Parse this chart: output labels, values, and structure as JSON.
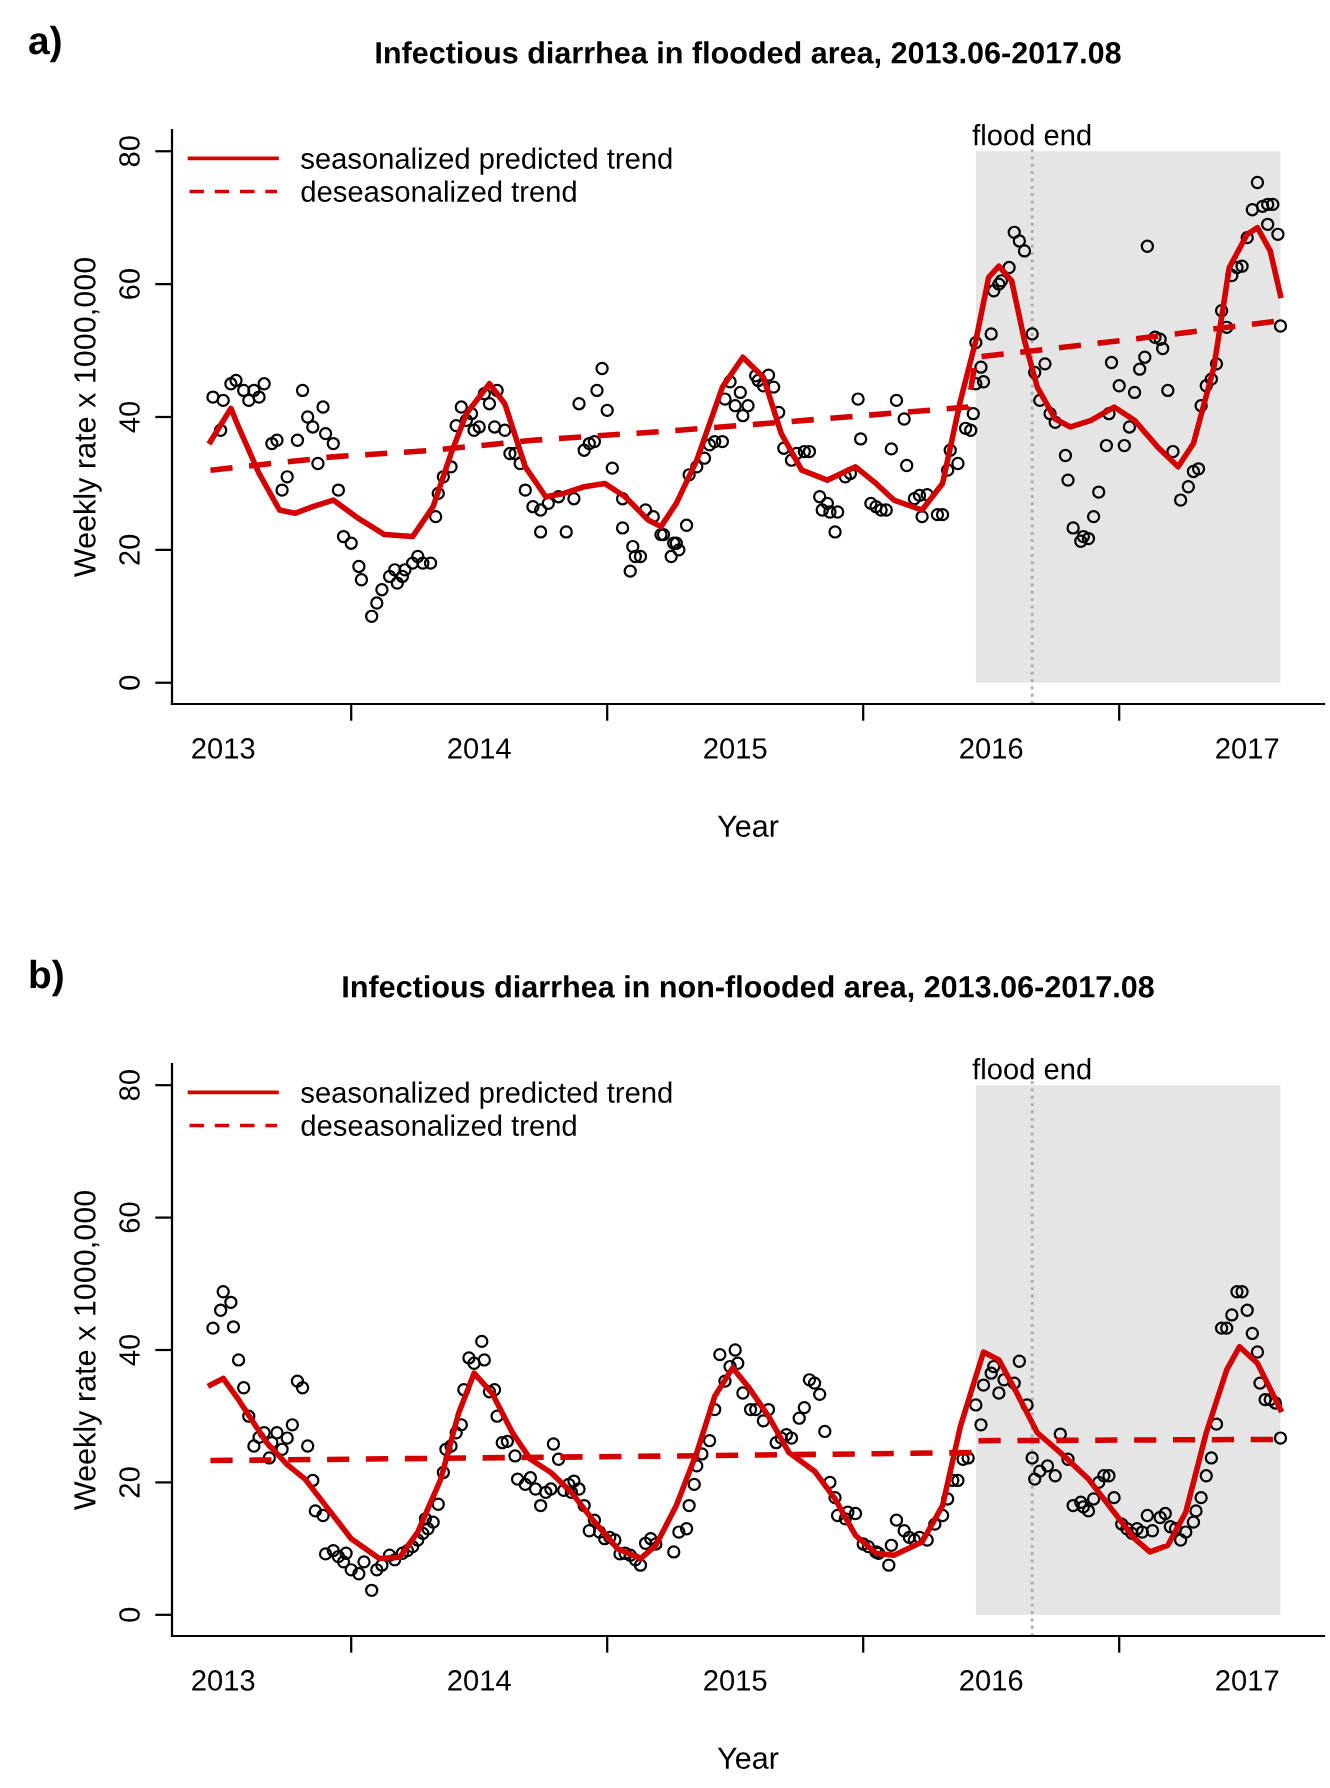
{
  "chart_data": [
    {
      "type": "scatter",
      "title": "Infectious diarrhea in flooded area, 2013.06-2017.08",
      "xlabel": "Year",
      "ylabel": "Weekly rate x 1000,000",
      "annotations": [
        "a)"
      ],
      "xlim": [
        2013.3,
        2017.8
      ],
      "ylim": [
        -3.2,
        83.2
      ],
      "yticks": [
        0,
        20,
        40,
        60,
        80
      ],
      "xticks": [
        {
          "value": 2013.5,
          "label": "2013"
        },
        {
          "value": 2014,
          "label": null
        },
        {
          "value": 2014.5,
          "label": "2014"
        },
        {
          "value": 2015,
          "label": null
        },
        {
          "value": 2015.5,
          "label": "2015"
        },
        {
          "value": 2016,
          "label": null
        },
        {
          "value": 2016.5,
          "label": "2016"
        },
        {
          "value": 2017,
          "label": null
        },
        {
          "value": 2017.5,
          "label": "2017"
        }
      ],
      "legend": "top left",
      "bands": [
        {
          "axis": "x",
          "from": 2016.44,
          "to": 2017.63,
          "color": "#e5e5e5"
        }
      ],
      "ref_lines": [
        {
          "axis": "x",
          "value": 2016.66,
          "label": "flood end",
          "color": "#aaaaaa",
          "line_style": "dotted"
        }
      ],
      "series": [
        {
          "marker": "circle",
          "color": "#000000",
          "x": [
            2013.46,
            2013.5,
            2013.49,
            2013.53,
            2013.55,
            2013.58,
            2013.6,
            2013.62,
            2013.64,
            2013.66,
            2013.69,
            2013.71,
            2013.73,
            2013.75,
            2013.79,
            2013.81,
            2013.83,
            2013.85,
            2013.87,
            2013.89,
            2013.9,
            2013.93,
            2013.95,
            2013.97,
            2014.0,
            2014.03,
            2014.04,
            2014.08,
            2014.1,
            2014.12,
            2014.15,
            2014.17,
            2014.18,
            2014.2,
            2014.21,
            2014.24,
            2014.26,
            2014.28,
            2014.31,
            2014.33,
            2014.34,
            2014.36,
            2014.39,
            2014.41,
            2014.43,
            2014.45,
            2014.47,
            2014.48,
            2014.5,
            2014.52,
            2014.54,
            2014.57,
            2014.56,
            2014.6,
            2014.62,
            2014.64,
            2014.66,
            2014.68,
            2014.71,
            2014.74,
            2014.74,
            2014.77,
            2014.81,
            2014.84,
            2014.87,
            2014.89,
            2014.91,
            2014.93,
            2014.95,
            2014.96,
            2014.98,
            2015.0,
            2015.02,
            2015.06,
            2015.06,
            2015.09,
            2015.1,
            2015.11,
            2015.13,
            2015.15,
            2015.18,
            2015.21,
            2015.22,
            2015.25,
            2015.26,
            2015.27,
            2015.28,
            2015.31,
            2015.32,
            2015.35,
            2015.38,
            2015.4,
            2015.42,
            2015.45,
            2015.46,
            2015.48,
            2015.5,
            2015.52,
            2015.53,
            2015.55,
            2015.58,
            2015.59,
            2015.61,
            2015.63,
            2015.65,
            2015.67,
            2015.69,
            2015.72,
            2015.74,
            2015.77,
            2015.79,
            2015.83,
            2015.84,
            2015.86,
            2015.87,
            2015.9,
            2015.89,
            2015.93,
            2015.95,
            2015.98,
            2015.99,
            2016.03,
            2016.05,
            2016.07,
            2016.09,
            2016.11,
            2016.13,
            2016.16,
            2016.17,
            2016.2,
            2016.22,
            2016.23,
            2016.25,
            2016.29,
            2016.31,
            2016.33,
            2016.34,
            2016.37,
            2016.4,
            2016.42,
            2016.43,
            2016.44,
            2016.46,
            2016.44,
            2016.47,
            2016.5,
            2016.51,
            2016.53,
            2016.54,
            2016.57,
            2016.59,
            2016.61,
            2016.63,
            2016.66,
            2016.67,
            2016.71,
            2016.69,
            2016.73,
            2016.75,
            2016.79,
            2016.8,
            2016.82,
            2016.85,
            2016.86,
            2016.88,
            2016.9,
            2016.92,
            2016.95,
            2016.96,
            2016.97,
            2017.0,
            2017.02,
            2017.04,
            2017.06,
            2017.08,
            2017.1,
            2017.11,
            2017.14,
            2017.16,
            2017.17,
            2017.19,
            2017.21,
            2017.24,
            2017.27,
            2017.29,
            2017.31,
            2017.32,
            2017.34,
            2017.36,
            2017.38,
            2017.4,
            2017.42,
            2017.44,
            2017.46,
            2017.48,
            2017.5,
            2017.52,
            2017.54,
            2017.56,
            2017.58,
            2017.6,
            2017.58,
            2017.62,
            2017.63
          ],
          "values": [
            43,
            42.5,
            38,
            45,
            45.5,
            44,
            42.5,
            44,
            43,
            45,
            36,
            36.5,
            29,
            31,
            36.5,
            44,
            40,
            38.5,
            33,
            41.5,
            37.5,
            36,
            29,
            22,
            21,
            17.5,
            15.5,
            10,
            12,
            14,
            16,
            17,
            15,
            16,
            17,
            18,
            19,
            18,
            18,
            25,
            28.5,
            31,
            32.5,
            38.7,
            41.5,
            39.5,
            40.5,
            38,
            38.5,
            43.5,
            42,
            44,
            38.5,
            38,
            34.5,
            34.5,
            33,
            29,
            26.5,
            26,
            22.7,
            27,
            28,
            22.7,
            27.7,
            42,
            35,
            36,
            36.3,
            44,
            47.3,
            41,
            32.3,
            27.7,
            23.3,
            16.8,
            20.5,
            19,
            19,
            26,
            25,
            22.3,
            22.3,
            19,
            21,
            21,
            20,
            23.7,
            31.3,
            32.5,
            33.8,
            35.8,
            36.3,
            36.3,
            42.7,
            45.3,
            41.7,
            43.7,
            40.2,
            41.7,
            46.2,
            45.5,
            44.7,
            46.3,
            44.5,
            40.7,
            35.3,
            33.5,
            34.5,
            34.8,
            34.8,
            28,
            26,
            27,
            25.7,
            25.7,
            22.7,
            31,
            31.5,
            42.7,
            36.7,
            27,
            26.5,
            26,
            26,
            35.2,
            42.5,
            39.7,
            32.7,
            27.7,
            28.2,
            25,
            28.3,
            25.3,
            25.3,
            32,
            35,
            33,
            38.3,
            38,
            40.5,
            45,
            47.5,
            51.2,
            45.3,
            52.5,
            59,
            60,
            60.5,
            62.5,
            67.8,
            66.5,
            65,
            52.5,
            46.7,
            48,
            42.5,
            40.5,
            39.2,
            34.2,
            30.5,
            23.3,
            21.3,
            22,
            21.7,
            25,
            28.7,
            35.7,
            40.5,
            48.2,
            44.7,
            35.7,
            38.5,
            43.7,
            47.2,
            49,
            65.7,
            52,
            51.7,
            50.3,
            44,
            34.8,
            27.5,
            29.5,
            31.8,
            32.2,
            41.7,
            44.7,
            45.7,
            48,
            56,
            53.5,
            61.3,
            62.5,
            62.7,
            67,
            71.2,
            75.3,
            71.7,
            72,
            72,
            69,
            67.5,
            53.7
          ]
        },
        {
          "type": "line",
          "name": "seasonalized predicted trend",
          "color": "#d40000",
          "line_style": "solid",
          "x": [
            2013.45,
            2013.53,
            2013.56,
            2013.64,
            2013.72,
            2013.78,
            2013.85,
            2013.93,
            2014.03,
            2014.13,
            2014.24,
            2014.32,
            2014.39,
            2014.45,
            2014.54,
            2014.6,
            2014.68,
            2014.76,
            2014.83,
            2014.91,
            2014.99,
            2015.07,
            2015.16,
            2015.21,
            2015.27,
            2015.35,
            2015.45,
            2015.53,
            2015.61,
            2015.68,
            2015.76,
            2015.86,
            2015.97,
            2016.05,
            2016.12,
            2016.23,
            2016.31,
            2016.38,
            2016.44,
            2016.49,
            2016.53,
            2016.58,
            2016.63,
            2016.68,
            2016.75,
            2016.81,
            2016.89,
            2016.98,
            2017.06,
            2017.15,
            2017.23,
            2017.29,
            2017.37,
            2017.43,
            2017.5,
            2017.54,
            2017.59,
            2017.63
          ],
          "values": [
            36.3,
            41.3,
            38.5,
            31.5,
            26,
            25.5,
            26.5,
            27.5,
            24.7,
            22.3,
            22,
            26.5,
            34.5,
            40.5,
            45,
            42,
            32.5,
            28,
            28.5,
            29.5,
            30,
            28,
            24.5,
            23.5,
            27,
            33.5,
            44.5,
            49,
            46,
            37.5,
            32,
            30.5,
            32.5,
            30,
            27.5,
            26,
            30,
            42.5,
            51.5,
            61,
            62.7,
            60.5,
            51.5,
            44.5,
            39.7,
            38.5,
            39.5,
            41.5,
            39.5,
            35.5,
            32.5,
            36,
            47.5,
            62.5,
            67.5,
            68.5,
            65,
            58.3
          ]
        },
        {
          "type": "line",
          "name": "deseasonalized trend",
          "color": "#d40000",
          "line_style": "dashed",
          "x": [
            2013.45,
            2013.93,
            2014.32,
            2014.71,
            2015.28,
            2015.71,
            2016.41,
            2016.44,
            2017.01,
            2017.63
          ],
          "values": [
            32,
            34,
            35,
            36.5,
            38,
            39.3,
            41.5,
            49,
            51.5,
            54.5
          ]
        }
      ]
    },
    {
      "type": "scatter",
      "title": "Infectious diarrhea in non-flooded area, 2013.06-2017.08",
      "xlabel": "Year",
      "ylabel": "Weekly rate x 1000,000",
      "annotations": [
        "b)"
      ],
      "xlim": [
        2013.3,
        2017.8
      ],
      "ylim": [
        -3.2,
        83.2
      ],
      "yticks": [
        0,
        20,
        40,
        60,
        80
      ],
      "xticks": [
        {
          "value": 2013.5,
          "label": "2013"
        },
        {
          "value": 2014,
          "label": null
        },
        {
          "value": 2014.5,
          "label": "2014"
        },
        {
          "value": 2015,
          "label": null
        },
        {
          "value": 2015.5,
          "label": "2015"
        },
        {
          "value": 2016,
          "label": null
        },
        {
          "value": 2016.5,
          "label": "2016"
        },
        {
          "value": 2017,
          "label": null
        },
        {
          "value": 2017.5,
          "label": "2017"
        }
      ],
      "legend": "top left",
      "bands": [
        {
          "axis": "x",
          "from": 2016.44,
          "to": 2017.63,
          "color": "#e5e5e5"
        }
      ],
      "ref_lines": [
        {
          "axis": "x",
          "value": 2016.66,
          "label": "flood end",
          "color": "#aaaaaa",
          "line_style": "dotted"
        }
      ],
      "series": [
        {
          "marker": "circle",
          "color": "#000000",
          "x": [
            2013.46,
            2013.49,
            2013.5,
            2013.53,
            2013.54,
            2013.56,
            2013.58,
            2013.6,
            2013.62,
            2013.64,
            2013.66,
            2013.68,
            2013.69,
            2013.71,
            2013.73,
            2013.75,
            2013.77,
            2013.79,
            2013.81,
            2013.83,
            2013.85,
            2013.86,
            2013.89,
            2013.9,
            2013.93,
            2013.95,
            2013.97,
            2013.98,
            2014.0,
            2014.03,
            2014.05,
            2014.08,
            2014.1,
            2014.12,
            2014.15,
            2014.17,
            2014.2,
            2014.22,
            2014.24,
            2014.26,
            2014.28,
            2014.29,
            2014.3,
            2014.32,
            2014.34,
            2014.36,
            2014.37,
            2014.39,
            2014.41,
            2014.43,
            2014.44,
            2014.46,
            2014.48,
            2014.51,
            2014.52,
            2014.54,
            2014.56,
            2014.57,
            2014.59,
            2014.61,
            2014.64,
            2014.65,
            2014.68,
            2014.7,
            2014.72,
            2014.74,
            2014.76,
            2014.78,
            2014.79,
            2014.81,
            2014.83,
            2014.85,
            2014.86,
            2014.87,
            2014.89,
            2014.91,
            2014.93,
            2014.95,
            2014.97,
            2014.99,
            2015.01,
            2015.03,
            2015.05,
            2015.07,
            2015.09,
            2015.11,
            2015.13,
            2015.15,
            2015.17,
            2015.19,
            2015.26,
            2015.28,
            2015.31,
            2015.32,
            2015.34,
            2015.35,
            2015.37,
            2015.4,
            2015.42,
            2015.44,
            2015.46,
            2015.48,
            2015.5,
            2015.51,
            2015.53,
            2015.56,
            2015.58,
            2015.61,
            2015.63,
            2015.66,
            2015.68,
            2015.7,
            2015.72,
            2015.75,
            2015.77,
            2015.79,
            2015.81,
            2015.83,
            2015.85,
            2015.87,
            2015.89,
            2015.9,
            2015.93,
            2015.94,
            2015.97,
            2016.0,
            2016.02,
            2016.05,
            2016.06,
            2016.1,
            2016.11,
            2016.13,
            2016.16,
            2016.18,
            2016.2,
            2016.22,
            2016.25,
            2016.28,
            2016.31,
            2016.33,
            2016.35,
            2016.37,
            2016.39,
            2016.41,
            2016.44,
            2016.46,
            2016.47,
            2016.5,
            2016.51,
            2016.53,
            2016.55,
            2016.59,
            2016.61,
            2016.64,
            2016.66,
            2016.67,
            2016.69,
            2016.72,
            2016.75,
            2016.77,
            2016.8,
            2016.82,
            2016.85,
            2016.86,
            2016.88,
            2016.9,
            2016.92,
            2016.94,
            2016.96,
            2016.98,
            2017.01,
            2017.03,
            2017.05,
            2017.07,
            2017.09,
            2017.11,
            2017.13,
            2017.16,
            2017.18,
            2017.2,
            2017.22,
            2017.24,
            2017.26,
            2017.29,
            2017.3,
            2017.32,
            2017.34,
            2017.36,
            2017.38,
            2017.4,
            2017.42,
            2017.44,
            2017.46,
            2017.48,
            2017.5,
            2017.52,
            2017.54,
            2017.55,
            2017.57,
            2017.59,
            2017.61,
            2017.63
          ],
          "values": [
            43.3,
            46,
            48.8,
            47.2,
            43.5,
            38.5,
            34.3,
            30,
            25.5,
            26.8,
            27.5,
            23.7,
            26,
            27.5,
            25,
            26.7,
            28.7,
            35.3,
            34.3,
            25.5,
            20.3,
            15.7,
            15,
            9.2,
            9.7,
            8.8,
            8,
            9.3,
            6.8,
            6.2,
            8,
            3.7,
            6.8,
            7.5,
            9,
            8.3,
            9.3,
            9.7,
            10.3,
            11.3,
            12.3,
            14.5,
            13,
            14,
            16.7,
            21.5,
            25,
            25.5,
            27.5,
            28.7,
            34,
            38.8,
            38,
            41.3,
            38.5,
            33.7,
            34,
            30,
            26,
            26.2,
            24,
            20.5,
            19.7,
            20.7,
            19,
            16.5,
            18.5,
            19,
            25.8,
            23.5,
            18.8,
            19.7,
            18.5,
            20.2,
            19,
            16.5,
            12.7,
            14.3,
            12.5,
            11.5,
            11.7,
            11.3,
            9.2,
            9.3,
            9,
            8.3,
            7.5,
            10.8,
            11.5,
            10.7,
            9.5,
            12.5,
            13,
            16.5,
            19.7,
            22.5,
            24.3,
            26.3,
            31,
            39.3,
            35.3,
            37.5,
            40,
            38,
            33.5,
            31,
            31,
            29.3,
            31,
            26,
            26.7,
            27.2,
            26.7,
            29.7,
            31.3,
            35.5,
            35,
            33.3,
            27.7,
            20,
            17.7,
            15,
            14.5,
            15.5,
            15.3,
            10.7,
            10.3,
            9.5,
            9.3,
            7.5,
            10.5,
            14.3,
            12.7,
            11.7,
            11.3,
            11.7,
            11.3,
            13.7,
            15,
            17.5,
            20.3,
            20.3,
            23.5,
            23.7,
            31.7,
            28.7,
            34.7,
            36.5,
            37.5,
            33.5,
            35.5,
            35,
            38.3,
            31.7,
            23.7,
            20.5,
            21.7,
            22.5,
            21,
            27.3,
            23.5,
            16.5,
            17,
            16.3,
            15.7,
            17.5,
            20,
            21,
            21,
            17.7,
            13.7,
            13,
            12.3,
            13,
            12.5,
            15,
            12.7,
            14.7,
            15.3,
            13.3,
            13,
            11.3,
            12.5,
            14,
            15.7,
            17.7,
            21,
            23.7,
            28.8,
            43.3,
            43.3,
            45.3,
            48.8,
            48.8,
            46,
            42.5,
            39.7,
            35,
            32.5,
            32.5,
            32,
            26.7
          ]
        },
        {
          "type": "line",
          "name": "seasonalized predicted trend",
          "color": "#d40000",
          "line_style": "solid",
          "x": [
            2013.45,
            2013.5,
            2013.56,
            2013.67,
            2013.75,
            2013.82,
            2013.9,
            2014.0,
            2014.11,
            2014.19,
            2014.26,
            2014.35,
            2014.42,
            2014.48,
            2014.55,
            2014.63,
            2014.7,
            2014.78,
            2014.86,
            2014.94,
            2015.04,
            2015.13,
            2015.19,
            2015.27,
            2015.35,
            2015.42,
            2015.49,
            2015.55,
            2015.63,
            2015.71,
            2015.81,
            2015.89,
            2015.97,
            2016.05,
            2016.12,
            2016.23,
            2016.31,
            2016.38,
            2016.44,
            2016.47,
            2016.53,
            2016.6,
            2016.68,
            2016.77,
            2016.88,
            2016.98,
            2017.06,
            2017.12,
            2017.19,
            2017.26,
            2017.34,
            2017.42,
            2017.47,
            2017.54,
            2017.63
          ],
          "values": [
            34.7,
            35.7,
            32.5,
            26,
            22.7,
            20.5,
            16.5,
            11.5,
            8.5,
            8.7,
            12.5,
            20.5,
            30.5,
            36.5,
            33.5,
            27.5,
            23.5,
            21.5,
            18.5,
            14.5,
            10,
            8.5,
            10.5,
            16.5,
            24.5,
            33,
            37.3,
            34.5,
            30,
            24.5,
            21.7,
            17.5,
            12,
            9.3,
            9,
            11,
            16.5,
            28.5,
            36,
            39.7,
            38.5,
            33.5,
            27.5,
            24.5,
            20.5,
            15.5,
            11.5,
            9.5,
            10.5,
            15.5,
            27.5,
            37,
            40.5,
            38,
            31
          ]
        },
        {
          "type": "line",
          "name": "deseasonalized trend",
          "color": "#d40000",
          "line_style": "dashed",
          "x": [
            2013.45,
            2015.28,
            2016.43,
            2016.44,
            2017.63
          ],
          "values": [
            23.3,
            24,
            24.5,
            26.3,
            26.5
          ]
        }
      ]
    }
  ]
}
